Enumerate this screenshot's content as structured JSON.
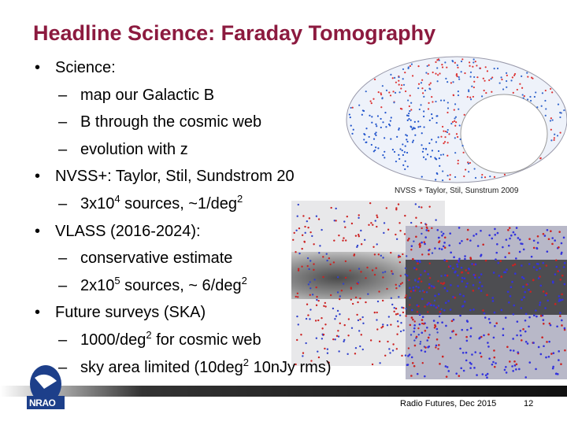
{
  "header": {
    "title": "Headline Science: Faraday Tomography"
  },
  "bullets": [
    {
      "parts": [
        {
          "text": "Science:"
        }
      ],
      "items": [
        {
          "parts": [
            {
              "text": "map our Galactic B"
            }
          ]
        },
        {
          "parts": [
            {
              "text": "B through the cosmic web"
            }
          ]
        },
        {
          "parts": [
            {
              "text": "evolution with z"
            }
          ]
        }
      ]
    },
    {
      "parts": [
        {
          "text": "NVSS+: Taylor, Stil, Sundstrom 20"
        }
      ],
      "items": [
        {
          "parts": [
            {
              "text": "3x10"
            },
            {
              "sup": "4"
            },
            {
              "text": " sources, ~1/deg"
            },
            {
              "sup": "2"
            }
          ]
        }
      ]
    },
    {
      "parts": [
        {
          "text": "VLASS (2016-2024):"
        }
      ],
      "items": [
        {
          "parts": [
            {
              "text": "conservative estimate"
            }
          ]
        },
        {
          "parts": [
            {
              "text": "2x10"
            },
            {
              "sup": "5"
            },
            {
              "text": " sources, ~ 6/deg"
            },
            {
              "sup": "2"
            }
          ]
        }
      ]
    },
    {
      "parts": [
        {
          "text": "Future surveys (SKA)"
        }
      ],
      "items": [
        {
          "parts": [
            {
              "text": "1000/deg"
            },
            {
              "sup": "2"
            },
            {
              "text": " for cosmic web"
            }
          ]
        },
        {
          "parts": [
            {
              "text": "sky area limited (10deg"
            },
            {
              "sup": "2"
            },
            {
              "text": " 10nJy rms)"
            }
          ]
        }
      ]
    }
  ],
  "figure": {
    "caption": "NVSS + Taylor, Stil, Sunstrum 2009"
  },
  "footer": {
    "logo": "NRAO",
    "source": "Radio Futures, Dec 2015",
    "page": "12"
  }
}
